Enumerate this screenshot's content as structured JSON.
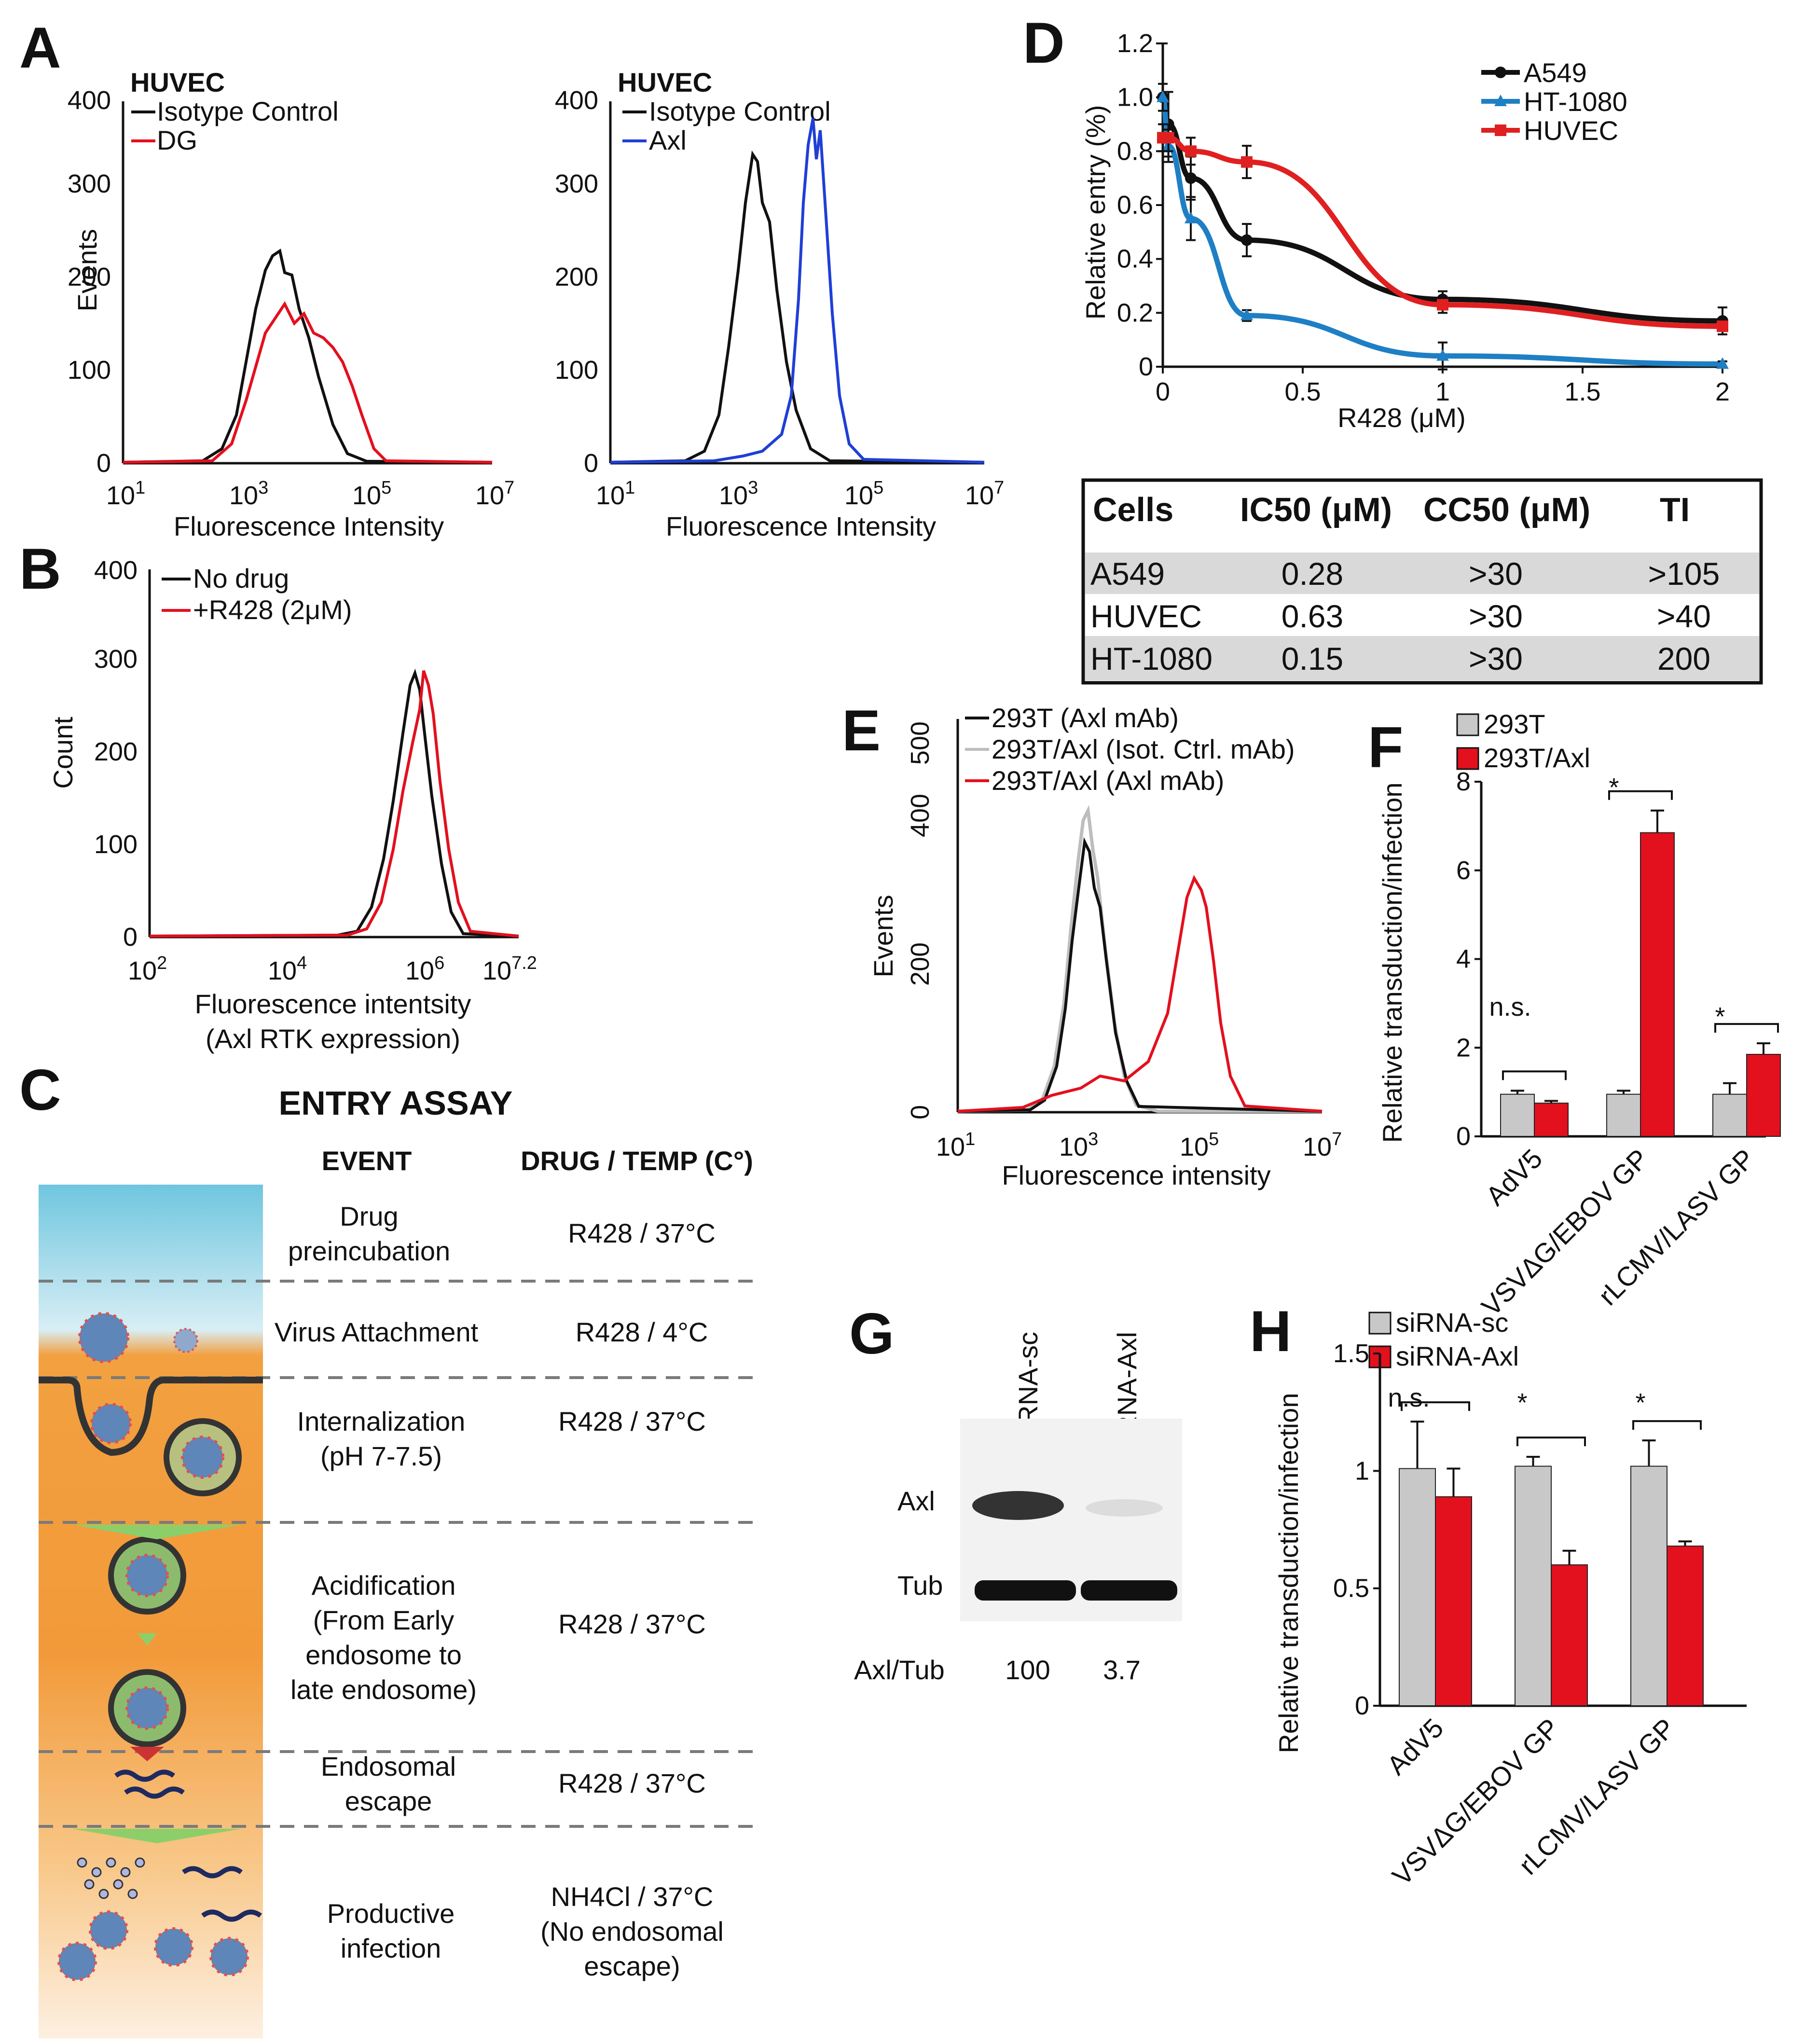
{
  "panels": {
    "A": {
      "letter": "A",
      "left": {
        "title": "HUVEC",
        "legend": [
          "Isotype Control",
          "DG"
        ],
        "y_label": "Events",
        "x_label": "Fluorescence Intensity",
        "y_ticks": [
          "0",
          "100",
          "200",
          "300",
          "400"
        ],
        "x_ticks": [
          "10",
          "10",
          "10",
          "10"
        ],
        "x_exps": [
          "1",
          "3",
          "5",
          "7"
        ]
      },
      "right": {
        "title": "HUVEC",
        "legend": [
          "Isotype Control",
          "Axl"
        ],
        "x_label": "Fluorescence Intensity",
        "y_ticks": [
          "0",
          "100",
          "200",
          "300",
          "400"
        ],
        "x_ticks": [
          "10",
          "10",
          "10",
          "10"
        ],
        "x_exps": [
          "1",
          "3",
          "5",
          "7"
        ]
      }
    },
    "B": {
      "letter": "B",
      "legend": [
        "No drug",
        "+R428 (2μM)"
      ],
      "y_label": "Count",
      "x_label": "Fluorescence intentsity",
      "x_label2": "(Axl RTK expression)",
      "y_ticks": [
        "0",
        "100",
        "200",
        "300",
        "400"
      ],
      "x_ticks": [
        "10",
        "10",
        "10",
        "10"
      ],
      "x_exps": [
        "2",
        "4",
        "6",
        "7.2"
      ]
    },
    "C": {
      "letter": "C",
      "title": "ENTRY ASSAY",
      "col_event": "EVENT",
      "col_drug": "DRUG / TEMP (C°)",
      "rows": [
        {
          "event": [
            "Drug",
            "preincubation"
          ],
          "drug": [
            "R428 / 37°C"
          ]
        },
        {
          "event": [
            "Virus Attachment"
          ],
          "drug": [
            "R428 / 4°C"
          ]
        },
        {
          "event": [
            "Internalization",
            "(pH 7-7.5)"
          ],
          "drug": [
            "R428 / 37°C"
          ]
        },
        {
          "event": [
            "Acidification",
            "(From Early",
            "endosome to",
            "late endosome)"
          ],
          "drug": [
            "R428 / 37°C"
          ]
        },
        {
          "event": [
            "Endosomal",
            "escape"
          ],
          "drug": [
            "R428 / 37°C"
          ]
        },
        {
          "event": [
            "Productive",
            "infection"
          ],
          "drug": [
            "NH4Cl / 37°C",
            "(No endosomal",
            "escape)"
          ]
        }
      ]
    },
    "D": {
      "letter": "D",
      "y_label": "Relative entry (%)",
      "x_label": "R428 (μM)",
      "table": {
        "headers": [
          "Cells",
          "IC50 (μM)",
          "CC50 (μM)",
          "TI"
        ],
        "rows": [
          [
            "A549",
            "0.28",
            ">30",
            ">105"
          ],
          [
            "HUVEC",
            "0.63",
            ">30",
            ">40"
          ],
          [
            "HT-1080",
            "0.15",
            ">30",
            "200"
          ]
        ]
      }
    },
    "E": {
      "letter": "E",
      "legend": [
        "293T (Axl mAb)",
        "293T/Axl (Isot. Ctrl. mAb)",
        "293T/Axl (Axl mAb)"
      ],
      "y_label": "Events",
      "x_label": "Fluorescence intensity",
      "y_ticks": [
        "0",
        "200",
        "400",
        "500"
      ],
      "x_ticks": [
        "10",
        "10",
        "10",
        "10"
      ],
      "x_exps": [
        "1",
        "3",
        "5",
        "7"
      ]
    },
    "F": {
      "letter": "F",
      "legend": [
        "293T",
        "293T/Axl"
      ],
      "y_label": "Relative transduction/infection",
      "sig": [
        "n.s.",
        "*",
        "*"
      ]
    },
    "G": {
      "letter": "G",
      "lanes": [
        "siRNA-sc",
        "siRNA-Axl"
      ],
      "bands": [
        "Axl",
        "Tub"
      ],
      "ratio_label": "Axl/Tub",
      "ratios": [
        "100",
        "3.7"
      ]
    },
    "H": {
      "letter": "H",
      "legend": [
        "siRNA-sc",
        "siRNA-Axl"
      ],
      "y_label": "Relative transduction/infection",
      "sig": [
        "n.s.",
        "*",
        "*"
      ]
    }
  },
  "chart_data": [
    {
      "type": "line",
      "panel": "D",
      "x": [
        0,
        0.02,
        0.1,
        0.3,
        1,
        2
      ],
      "series": [
        {
          "name": "A549",
          "color": "#111111",
          "values": [
            1.0,
            0.9,
            0.7,
            0.47,
            0.25,
            0.17
          ],
          "errors": [
            0.2,
            0.12,
            0.08,
            0.06,
            0.03,
            0.05
          ]
        },
        {
          "name": "HT-1080",
          "color": "#1f7fc4",
          "values": [
            1.0,
            0.82,
            0.55,
            0.19,
            0.04,
            0.01
          ],
          "errors": [
            0.05,
            0.06,
            0.08,
            0.02,
            0.05,
            0.01
          ]
        },
        {
          "name": "HUVEC",
          "color": "#e02020",
          "values": [
            0.85,
            0.85,
            0.8,
            0.76,
            0.23,
            0.15
          ],
          "errors": [
            0.05,
            0.05,
            0.05,
            0.06,
            0.03,
            0.03
          ]
        }
      ],
      "xlim": [
        0,
        2
      ],
      "ylim": [
        0,
        1.2
      ],
      "x_ticks": [
        "0",
        "0.5",
        "1",
        "1.5",
        "2"
      ],
      "y_ticks": [
        "0",
        "0.2",
        "0.4",
        "0.6",
        "0.8",
        "1.0",
        "1.2"
      ],
      "legend_position": "top-right"
    },
    {
      "type": "bar",
      "panel": "F",
      "categories": [
        "AdV5",
        "VSVΔG/EBOV GP",
        "rLCMV/LASV GP"
      ],
      "series": [
        {
          "name": "293T",
          "color": "#c8c8c8",
          "values": [
            0.95,
            0.95,
            0.95
          ],
          "errors": [
            0.08,
            0.08,
            0.25
          ]
        },
        {
          "name": "293T/Axl",
          "color": "#e3101e",
          "values": [
            0.75,
            6.85,
            1.85
          ],
          "errors": [
            0.05,
            0.5,
            0.25
          ]
        }
      ],
      "ylim": [
        0,
        8
      ],
      "y_ticks": [
        "0",
        "2",
        "4",
        "6",
        "8"
      ]
    },
    {
      "type": "bar",
      "panel": "H",
      "categories": [
        "AdV5",
        "VSVΔG/EBOV GP",
        "rLCMV/LASV GP"
      ],
      "series": [
        {
          "name": "siRNA-sc",
          "color": "#c8c8c8",
          "values": [
            1.01,
            1.02,
            1.02
          ],
          "errors": [
            0.2,
            0.04,
            0.11
          ]
        },
        {
          "name": "siRNA-Axl",
          "color": "#e3101e",
          "values": [
            0.89,
            0.6,
            0.68
          ],
          "errors": [
            0.12,
            0.06,
            0.02
          ]
        }
      ],
      "ylim": [
        0,
        1.5
      ],
      "y_ticks": [
        "0",
        "0.5",
        "1",
        "1.5"
      ]
    }
  ],
  "colors": {
    "red": "#e3101e",
    "blue": "#1f3fd6",
    "lightblue": "#1f7fc4",
    "gray": "#bdbdbd",
    "black": "#111111"
  }
}
